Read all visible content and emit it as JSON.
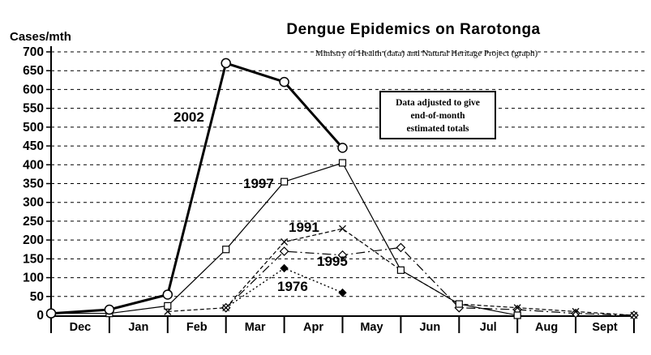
{
  "chart_data": {
    "type": "line",
    "title": "Dengue Epidemics on Rarotonga",
    "subtitle": "Ministry of Health (data) and Natural Heritage Project (graph)",
    "ylabel": "Cases/mth",
    "annotation": [
      "Data adjusted to give",
      "end-of-month",
      "estimated totals"
    ],
    "ylim": [
      0,
      700
    ],
    "ytick_step": 50,
    "grid": "horizontal-dashed",
    "legend_position": "inline-labels-on-lines",
    "categories": [
      "Dec",
      "Jan",
      "Feb",
      "Mar",
      "Apr",
      "May",
      "Jun",
      "Jul",
      "Aug",
      "Sept"
    ],
    "x_note": "points are plotted at end-of-month tick boundaries; first value of each series is a start anchor at the Dec tick (end of Nov), values are estimates read from the plot",
    "colors": {
      "ink": "#000000",
      "background": "#ffffff"
    },
    "series": [
      {
        "name": "2002",
        "line": "solid-thick",
        "marker": "open-circle",
        "values": [
          5,
          15,
          55,
          670,
          620,
          445,
          null,
          null,
          null,
          null,
          null
        ]
      },
      {
        "name": "1997",
        "line": "solid-thin",
        "marker": "open-square",
        "values": [
          5,
          5,
          25,
          175,
          355,
          405,
          120,
          30,
          0,
          null,
          null
        ]
      },
      {
        "name": "1991",
        "line": "dashed",
        "marker": "x-cross",
        "values": [
          null,
          null,
          10,
          20,
          195,
          230,
          120,
          30,
          20,
          10,
          0
        ]
      },
      {
        "name": "1995",
        "line": "dash-dot",
        "marker": "open-diamond",
        "values": [
          null,
          null,
          null,
          20,
          170,
          160,
          180,
          20,
          15,
          5,
          0
        ]
      },
      {
        "name": "1976",
        "line": "dotted",
        "marker": "filled-diamond",
        "values": [
          null,
          null,
          null,
          20,
          125,
          60,
          null,
          null,
          null,
          null,
          null
        ]
      }
    ]
  }
}
